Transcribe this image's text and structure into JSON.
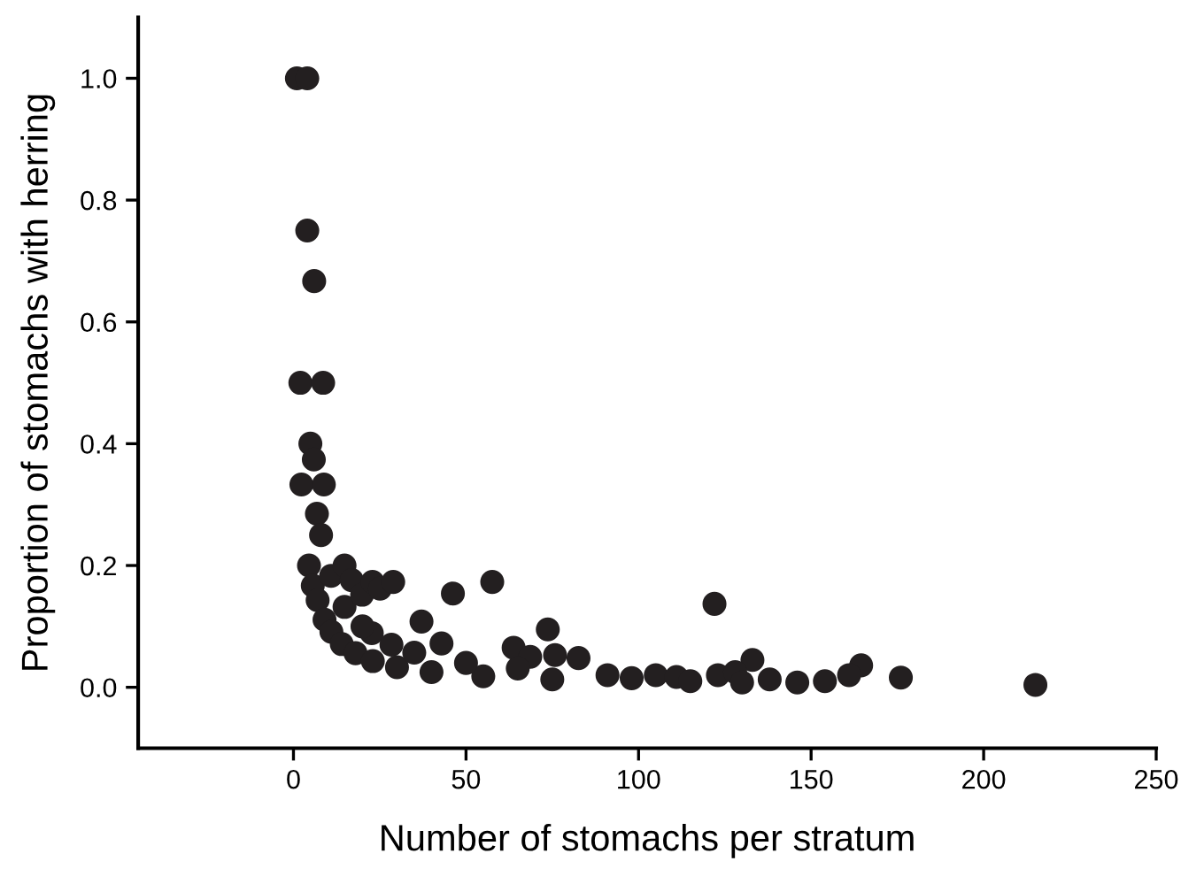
{
  "chart_data": {
    "type": "scatter",
    "xlabel": "Number of stomachs per stratum",
    "ylabel": "Proportion of stomachs with herring",
    "xlim": [
      -45,
      250
    ],
    "ylim": [
      -0.1,
      1.1
    ],
    "xticks": [
      0,
      50,
      100,
      150,
      200,
      250
    ],
    "yticks": [
      {
        "value": 0,
        "label": "0.0"
      },
      {
        "value": 0.2,
        "label": "0.2"
      },
      {
        "value": 0.4,
        "label": "0.4"
      },
      {
        "value": 0.6,
        "label": "0.6"
      },
      {
        "value": 0.8,
        "label": "0.8"
      },
      {
        "value": 1,
        "label": "1.0"
      }
    ],
    "grid": false,
    "legend": false,
    "marker": "circle",
    "series": [
      {
        "color": "#231f20",
        "x": [
          1,
          4,
          4,
          6,
          2,
          8.6,
          4.9,
          5.9,
          2.3,
          8.8,
          6.8,
          8,
          4.5,
          5.6,
          10.9,
          14.8,
          16.9,
          14.8,
          19.9,
          22.9,
          25.1,
          28.9,
          22.7,
          37.1,
          46.2,
          57.6,
          42.9,
          73.7,
          75.8,
          82.6,
          63.8,
          68.6,
          28.4,
          122,
          164.5,
          176,
          215,
          133,
          91,
          98,
          105,
          111,
          115,
          123,
          128,
          130,
          138,
          146,
          154,
          161,
          7,
          9,
          11,
          14,
          18,
          23,
          30,
          40,
          55,
          75,
          20,
          35,
          50,
          65
        ],
        "values": [
          1,
          1,
          0.75,
          0.667,
          0.5,
          0.5,
          0.4,
          0.374,
          0.333,
          0.333,
          0.285,
          0.25,
          0.2,
          0.167,
          0.183,
          0.2,
          0.176,
          0.132,
          0.152,
          0.173,
          0.162,
          0.173,
          0.089,
          0.108,
          0.154,
          0.173,
          0.072,
          0.095,
          0.053,
          0.048,
          0.065,
          0.05,
          0.07,
          0.137,
          0.036,
          0.016,
          0.004,
          0.045,
          0.02,
          0.015,
          0.02,
          0.017,
          0.01,
          0.02,
          0.025,
          0.008,
          0.013,
          0.008,
          0.01,
          0.02,
          0.143,
          0.111,
          0.091,
          0.071,
          0.056,
          0.043,
          0.033,
          0.025,
          0.018,
          0.013,
          0.1,
          0.057,
          0.04,
          0.031
        ]
      }
    ]
  }
}
